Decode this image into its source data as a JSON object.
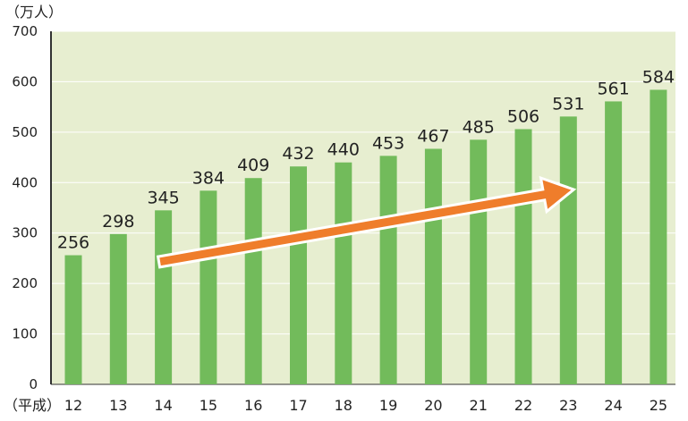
{
  "chart_data": {
    "type": "bar",
    "unit_label": "（万人）",
    "x_prefix": "（平成）",
    "categories": [
      "12",
      "13",
      "14",
      "15",
      "16",
      "17",
      "18",
      "19",
      "20",
      "21",
      "22",
      "23",
      "24",
      "25"
    ],
    "values": [
      256,
      298,
      345,
      384,
      409,
      432,
      440,
      453,
      467,
      485,
      506,
      531,
      561,
      584
    ],
    "ylim": [
      0,
      700
    ],
    "yticks": [
      0,
      100,
      200,
      300,
      400,
      500,
      600,
      700
    ],
    "grid": true,
    "arrow": {
      "from_category": "14",
      "to_category": "23",
      "direction": "up-right"
    },
    "colors": {
      "bar": "#72bb5b",
      "plot_background": "#e7eed0",
      "arrow": "#ef7d2b",
      "grid": "#ffffff"
    }
  }
}
